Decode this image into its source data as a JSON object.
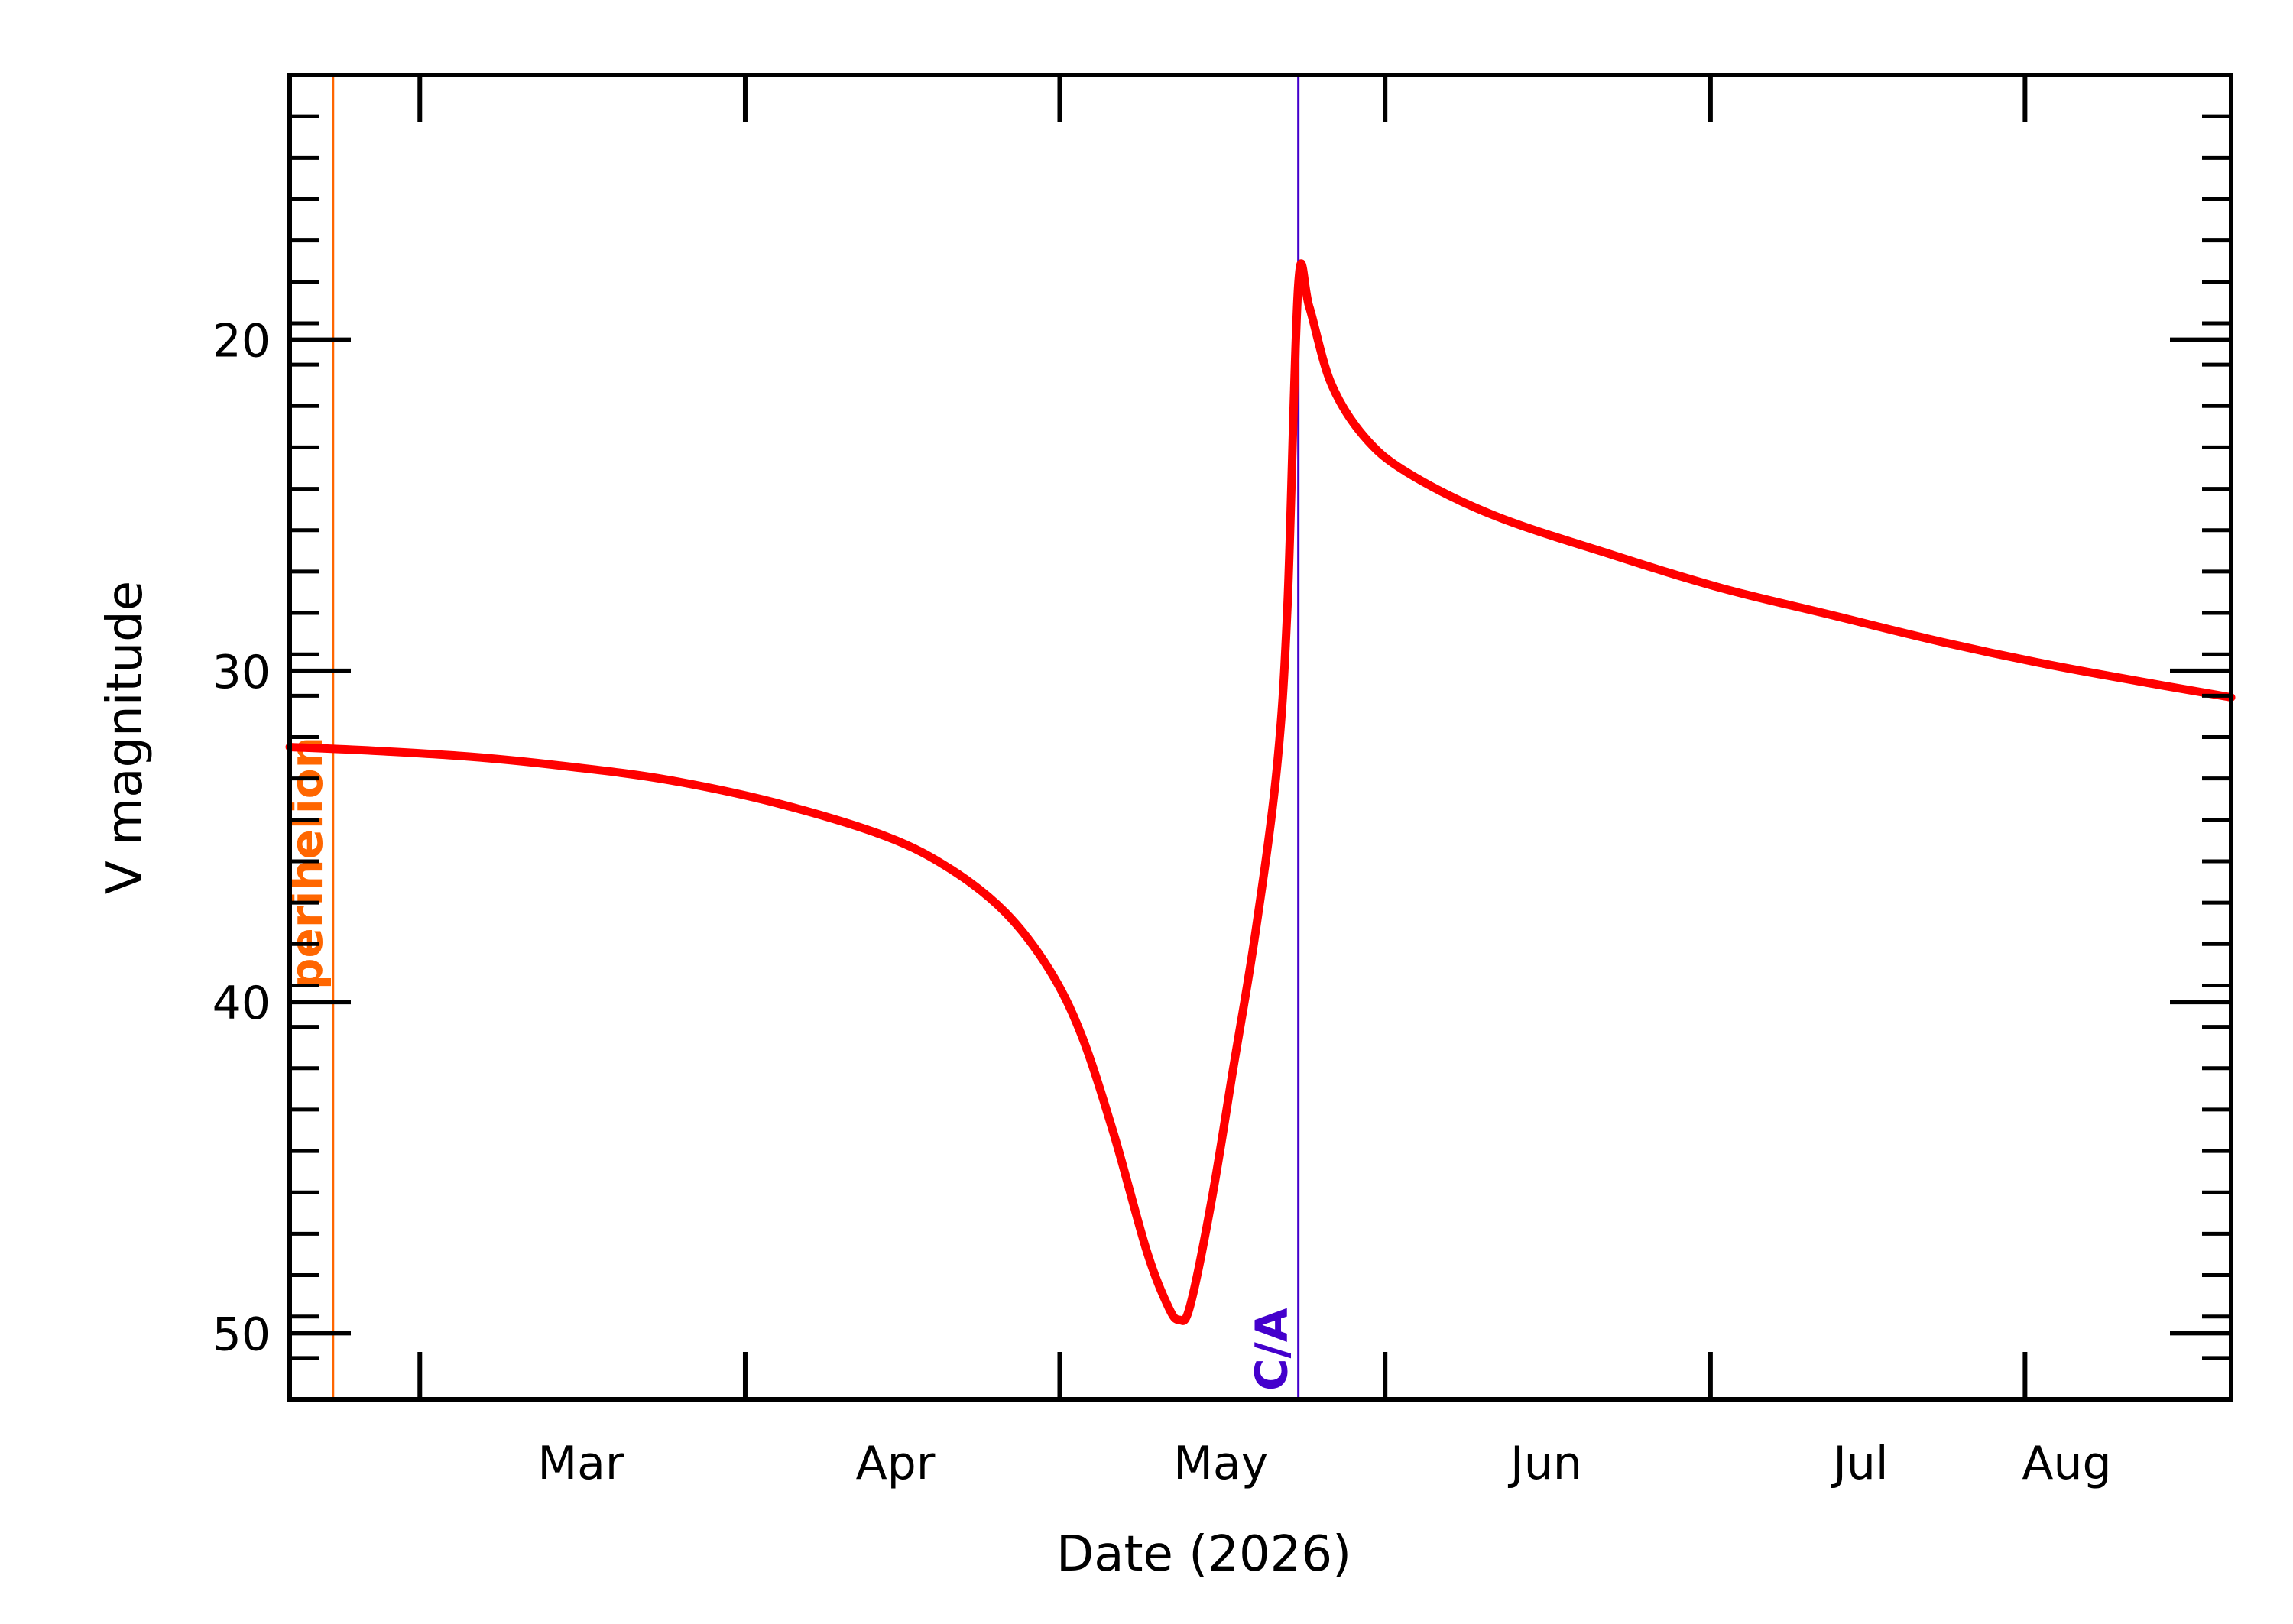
{
  "chart_data": {
    "type": "line",
    "title": "",
    "xlabel": "Date (2026)",
    "ylabel": "V magnitude",
    "x_axis": {
      "range": [
        "2026-02-03",
        "2026-08-01"
      ],
      "major_ticks": [
        {
          "date": "2026-02-15",
          "label": ""
        },
        {
          "date": "2026-03-17",
          "label": "Mar"
        },
        {
          "date": "2026-04-15",
          "label": "Apr"
        },
        {
          "date": "2026-05-15",
          "label": "May"
        },
        {
          "date": "2026-06-14",
          "label": "Jun"
        },
        {
          "date": "2026-07-13",
          "label": "Jul"
        },
        {
          "date": "2026-08-01",
          "label": "Aug"
        }
      ]
    },
    "y_axis": {
      "range": [
        52,
        12
      ],
      "inverted": true,
      "major_ticks": [
        20,
        30,
        40,
        50
      ],
      "minor_tick_step": 1.25
    },
    "grid": false,
    "series": [
      {
        "color": "#ff0000",
        "points": [
          {
            "x": "2026-02-03",
            "y": 32.3
          },
          {
            "x": "2026-02-10",
            "y": 32.4
          },
          {
            "x": "2026-02-20",
            "y": 32.6
          },
          {
            "x": "2026-03-01",
            "y": 32.9
          },
          {
            "x": "2026-03-10",
            "y": 33.3
          },
          {
            "x": "2026-03-20",
            "y": 34.0
          },
          {
            "x": "2026-03-30",
            "y": 35.0
          },
          {
            "x": "2026-04-05",
            "y": 36.0
          },
          {
            "x": "2026-04-10",
            "y": 37.3
          },
          {
            "x": "2026-04-14",
            "y": 39.0
          },
          {
            "x": "2026-04-17",
            "y": 41.0
          },
          {
            "x": "2026-04-20",
            "y": 44.0
          },
          {
            "x": "2026-04-23",
            "y": 47.5
          },
          {
            "x": "2026-04-25",
            "y": 49.2
          },
          {
            "x": "2026-04-26",
            "y": 49.6
          },
          {
            "x": "2026-04-27",
            "y": 49.2
          },
          {
            "x": "2026-04-29",
            "y": 46.0
          },
          {
            "x": "2026-05-01",
            "y": 42.0
          },
          {
            "x": "2026-05-03",
            "y": 38.0
          },
          {
            "x": "2026-05-05",
            "y": 33.0
          },
          {
            "x": "2026-05-06",
            "y": 28.0
          },
          {
            "x": "2026-05-07",
            "y": 18.3
          },
          {
            "x": "2026-05-08",
            "y": 19.0
          },
          {
            "x": "2026-05-10",
            "y": 21.3
          },
          {
            "x": "2026-05-13",
            "y": 22.9
          },
          {
            "x": "2026-05-17",
            "y": 24.0
          },
          {
            "x": "2026-05-25",
            "y": 25.3
          },
          {
            "x": "2026-06-05",
            "y": 26.5
          },
          {
            "x": "2026-06-15",
            "y": 27.5
          },
          {
            "x": "2026-06-25",
            "y": 28.3
          },
          {
            "x": "2026-07-05",
            "y": 29.1
          },
          {
            "x": "2026-07-15",
            "y": 29.8
          },
          {
            "x": "2026-07-25",
            "y": 30.4
          },
          {
            "x": "2026-08-01",
            "y": 30.8
          }
        ]
      }
    ],
    "markers": [
      {
        "date": "2026-02-07",
        "label": "perihelion",
        "color": "#ff6600"
      },
      {
        "date": "2026-05-07",
        "label": "C/A",
        "color": "#4400cc"
      }
    ]
  }
}
